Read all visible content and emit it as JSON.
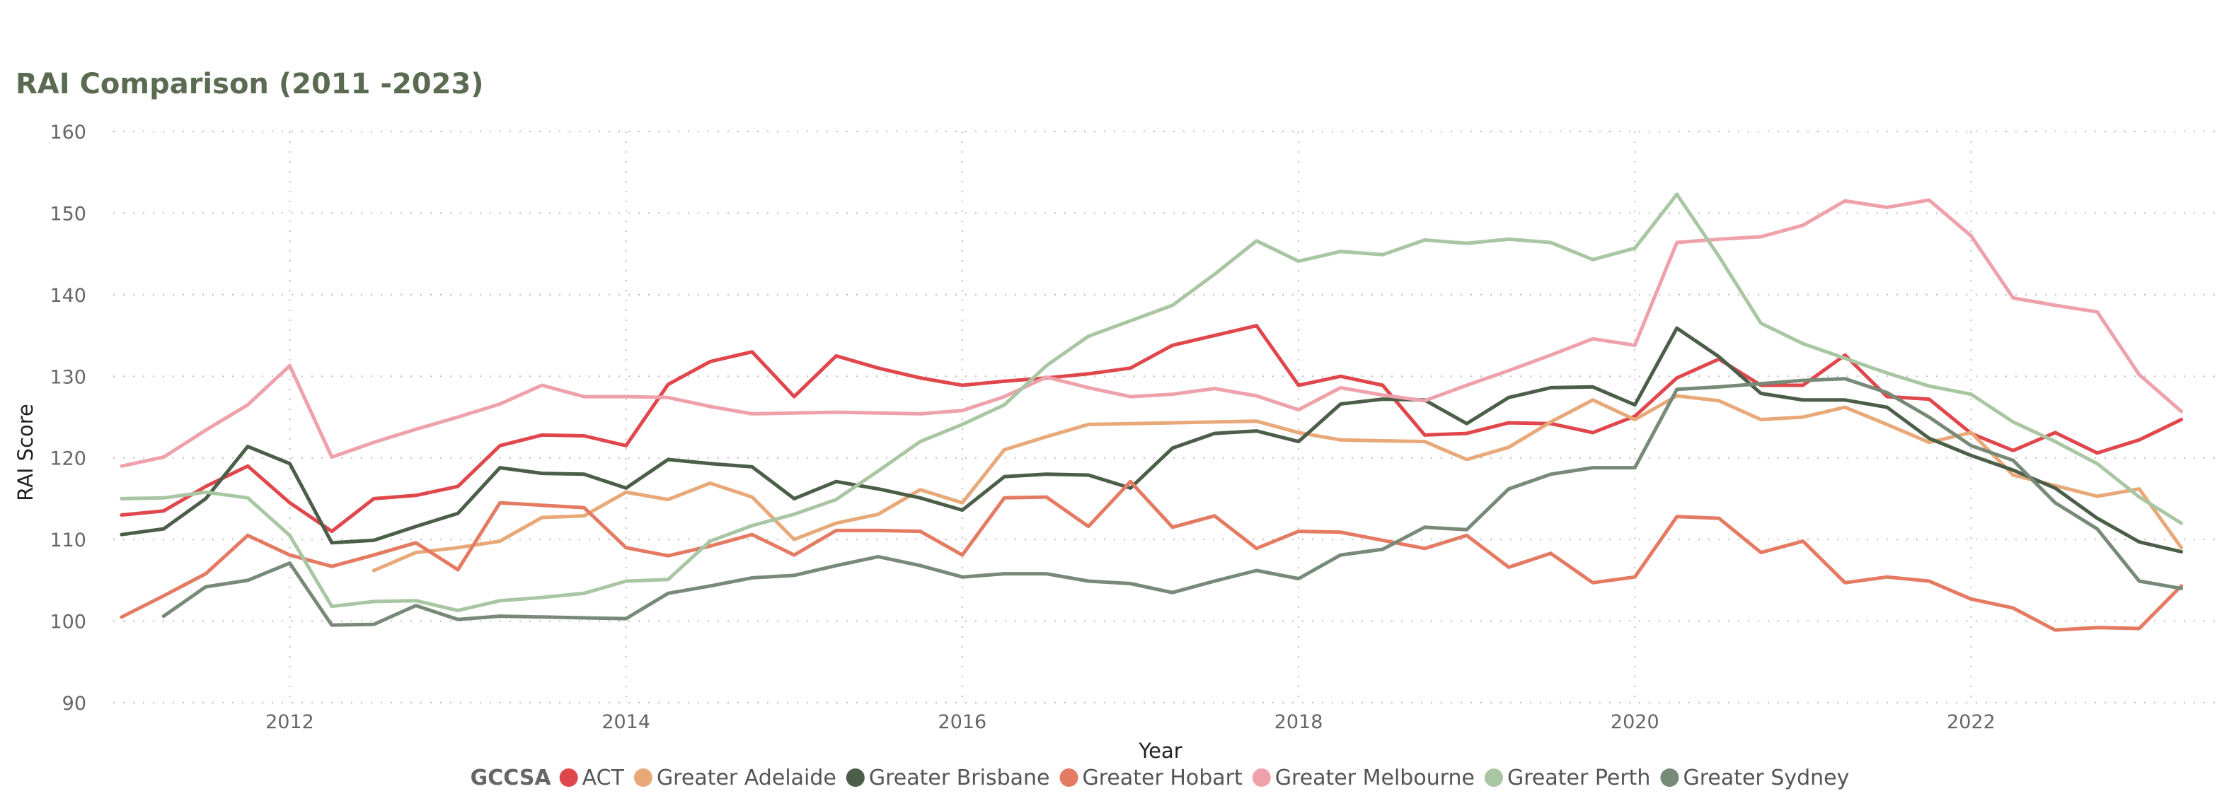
{
  "chart_data": {
    "type": "line",
    "title": "RAI Comparison (2011 -2023)",
    "xlabel": "Year",
    "ylabel": "RAI Score",
    "xlim": [
      2010.95,
      2023.45
    ],
    "ylim": [
      90,
      160
    ],
    "y_ticks": [
      90,
      100,
      110,
      120,
      130,
      140,
      150,
      160
    ],
    "x_ticks": [
      2012,
      2014,
      2016,
      2018,
      2020,
      2022
    ],
    "grid": true,
    "legend": {
      "title": "GCCSA",
      "placement": "bottom"
    },
    "x": [
      2011.0,
      2011.25,
      2011.5,
      2011.75,
      2012.0,
      2012.25,
      2012.5,
      2012.75,
      2013.0,
      2013.25,
      2013.5,
      2013.75,
      2014.0,
      2014.25,
      2014.5,
      2014.75,
      2015.0,
      2015.25,
      2015.5,
      2015.75,
      2016.0,
      2016.25,
      2016.5,
      2016.75,
      2017.0,
      2017.25,
      2017.5,
      2017.75,
      2018.0,
      2018.25,
      2018.5,
      2018.75,
      2019.0,
      2019.25,
      2019.5,
      2019.75,
      2020.0,
      2020.25,
      2020.5,
      2020.75,
      2021.0,
      2021.25,
      2021.5,
      2021.75,
      2022.0,
      2022.25,
      2022.5,
      2022.75,
      2023.0,
      2023.25
    ],
    "series": [
      {
        "name": "ACT",
        "color": "#e0474c",
        "values": [
          113,
          113.5,
          116.5,
          119,
          114.5,
          111,
          115,
          115.4,
          116.5,
          121.5,
          122.8,
          122.7,
          121.5,
          129,
          131.8,
          133,
          127.5,
          132.5,
          131,
          129.8,
          128.9,
          129.4,
          129.8,
          130.3,
          131,
          133.8,
          135,
          136.2,
          128.9,
          130,
          128.9,
          122.8,
          123,
          124.3,
          124.2,
          123.1,
          125.1,
          129.8,
          132.1,
          128.9,
          128.9,
          132.6,
          127.5,
          127.2,
          123,
          120.9,
          123.1,
          120.6,
          122.2,
          124.7
        ]
      },
      {
        "name": "Greater Adelaide",
        "color": "#e8a878",
        "values": [
          null,
          null,
          null,
          null,
          null,
          null,
          106.2,
          108.4,
          109,
          109.8,
          112.7,
          112.9,
          115.8,
          114.9,
          116.9,
          115.2,
          110,
          112,
          113.1,
          116.1,
          114.5,
          121,
          122.6,
          124.1,
          124.2,
          124.3,
          124.4,
          124.5,
          123.1,
          122.2,
          122.1,
          122,
          119.8,
          121.3,
          124.4,
          127.1,
          124.7,
          127.6,
          127,
          124.7,
          125,
          126.2,
          124.1,
          121.9,
          123.1,
          117.9,
          116.6,
          115.3,
          116.2,
          109
        ]
      },
      {
        "name": "Greater Brisbane",
        "color": "#4b5e48",
        "values": [
          110.6,
          111.3,
          115,
          121.4,
          119.3,
          109.6,
          109.9,
          111.6,
          113.2,
          118.8,
          118.1,
          118,
          116.3,
          119.8,
          119.3,
          118.9,
          115,
          117.1,
          116.2,
          115.1,
          113.6,
          117.7,
          118,
          117.9,
          116.3,
          121.2,
          123,
          123.3,
          122,
          126.6,
          127.2,
          127.1,
          124.2,
          127.4,
          128.6,
          128.7,
          126.5,
          135.9,
          132.4,
          127.9,
          127.1,
          127.1,
          126.2,
          122.4,
          120.3,
          118.5,
          116.3,
          112.6,
          109.7,
          108.5
        ]
      },
      {
        "name": "Greater Hobart",
        "color": "#e57a62",
        "values": [
          100.5,
          103.1,
          105.8,
          110.5,
          108.1,
          106.7,
          108.1,
          109.6,
          106.3,
          114.5,
          114.2,
          113.9,
          109,
          108,
          109.2,
          110.6,
          108.1,
          111.1,
          111.1,
          111,
          108.1,
          115.1,
          115.2,
          111.6,
          117.1,
          111.5,
          112.9,
          108.9,
          111,
          110.9,
          109.9,
          108.9,
          110.5,
          106.6,
          108.3,
          104.7,
          105.4,
          112.8,
          112.6,
          108.4,
          109.8,
          104.7,
          105.4,
          104.9,
          102.7,
          101.6,
          98.9,
          99.2,
          99.1,
          104.3
        ]
      },
      {
        "name": "Greater Melbourne",
        "color": "#efa1ab",
        "values": [
          119,
          120.1,
          123.4,
          126.5,
          131.3,
          120.1,
          121.9,
          123.5,
          125,
          126.6,
          128.9,
          127.5,
          127.5,
          127.4,
          126.3,
          125.4,
          125.5,
          125.6,
          125.5,
          125.4,
          125.8,
          127.5,
          129.9,
          128.6,
          127.5,
          127.8,
          128.5,
          127.6,
          125.9,
          128.6,
          127.7,
          127,
          128.9,
          130.7,
          132.6,
          134.6,
          133.8,
          146.4,
          146.8,
          147.1,
          148.5,
          151.5,
          150.7,
          151.6,
          147.2,
          139.6,
          138.7,
          137.9,
          130.2,
          125.7
        ]
      },
      {
        "name": "Greater Perth",
        "color": "#a9c6a3",
        "values": [
          115,
          115.1,
          115.8,
          115.1,
          110.5,
          101.8,
          102.4,
          102.5,
          101.3,
          102.5,
          102.9,
          103.4,
          104.9,
          105.1,
          109.8,
          111.7,
          113.1,
          114.9,
          118.4,
          122,
          124.1,
          126.5,
          131.3,
          134.9,
          136.8,
          138.7,
          142.5,
          146.6,
          144.1,
          145.3,
          144.9,
          146.7,
          146.3,
          146.8,
          146.4,
          144.3,
          145.7,
          152.3,
          144.7,
          136.5,
          134,
          132.2,
          130.4,
          128.8,
          127.8,
          124.4,
          122,
          119.3,
          115.2,
          112
        ]
      },
      {
        "name": "Greater Sydney",
        "color": "#778a78",
        "values": [
          null,
          100.6,
          104.2,
          105,
          107.1,
          99.5,
          99.6,
          101.9,
          100.2,
          100.6,
          100.5,
          100.4,
          100.3,
          103.4,
          104.3,
          105.3,
          105.6,
          106.8,
          107.9,
          106.8,
          105.4,
          105.8,
          105.8,
          104.9,
          104.6,
          103.5,
          104.9,
          106.2,
          105.2,
          108.1,
          108.8,
          111.5,
          111.2,
          116.2,
          118,
          118.8,
          118.8,
          128.4,
          128.7,
          129.1,
          129.5,
          129.7,
          128,
          125,
          121.5,
          119.7,
          114.5,
          111.3,
          104.9,
          104
        ]
      }
    ]
  }
}
